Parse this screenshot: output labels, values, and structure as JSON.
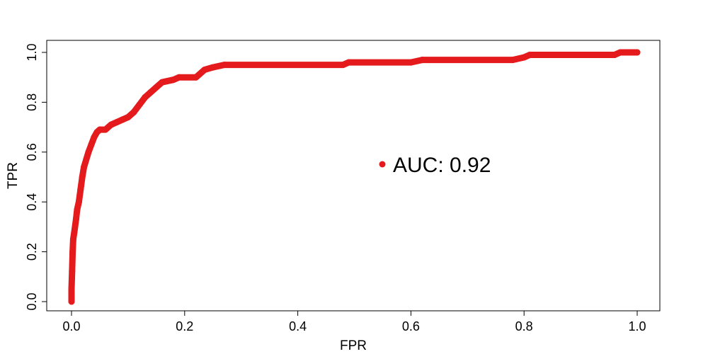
{
  "chart_data": {
    "type": "line",
    "title": "",
    "xlabel": "FPR",
    "ylabel": "TPR",
    "xlim": [
      0.0,
      1.0
    ],
    "ylim": [
      0.0,
      1.0
    ],
    "xticks": [
      "0.0",
      "0.2",
      "0.4",
      "0.6",
      "0.8",
      "1.0"
    ],
    "yticks": [
      "0.0",
      "0.2",
      "0.4",
      "0.6",
      "0.8",
      "1.0"
    ],
    "grid": false,
    "legend": {
      "text": "AUC: 0.92",
      "placement": "center-right"
    },
    "series": [
      {
        "color": "#e41a1c",
        "marker": "filled-circle",
        "points": [
          [
            0.0,
            0.0
          ],
          [
            0.0,
            0.05
          ],
          [
            0.001,
            0.12
          ],
          [
            0.002,
            0.2
          ],
          [
            0.003,
            0.25
          ],
          [
            0.005,
            0.28
          ],
          [
            0.008,
            0.33
          ],
          [
            0.01,
            0.37
          ],
          [
            0.013,
            0.4
          ],
          [
            0.016,
            0.45
          ],
          [
            0.019,
            0.5
          ],
          [
            0.022,
            0.54
          ],
          [
            0.026,
            0.57
          ],
          [
            0.03,
            0.6
          ],
          [
            0.035,
            0.63
          ],
          [
            0.04,
            0.66
          ],
          [
            0.045,
            0.68
          ],
          [
            0.05,
            0.69
          ],
          [
            0.06,
            0.69
          ],
          [
            0.07,
            0.71
          ],
          [
            0.08,
            0.72
          ],
          [
            0.09,
            0.73
          ],
          [
            0.1,
            0.74
          ],
          [
            0.11,
            0.76
          ],
          [
            0.12,
            0.79
          ],
          [
            0.13,
            0.82
          ],
          [
            0.14,
            0.84
          ],
          [
            0.15,
            0.86
          ],
          [
            0.16,
            0.88
          ],
          [
            0.18,
            0.89
          ],
          [
            0.19,
            0.9
          ],
          [
            0.22,
            0.9
          ],
          [
            0.235,
            0.93
          ],
          [
            0.25,
            0.94
          ],
          [
            0.27,
            0.95
          ],
          [
            0.48,
            0.95
          ],
          [
            0.49,
            0.96
          ],
          [
            0.6,
            0.96
          ],
          [
            0.62,
            0.97
          ],
          [
            0.78,
            0.97
          ],
          [
            0.8,
            0.98
          ],
          [
            0.81,
            0.99
          ],
          [
            0.96,
            0.99
          ],
          [
            0.97,
            1.0
          ],
          [
            1.0,
            1.0
          ]
        ]
      }
    ],
    "legend_marker_color": "#e41a1c"
  }
}
